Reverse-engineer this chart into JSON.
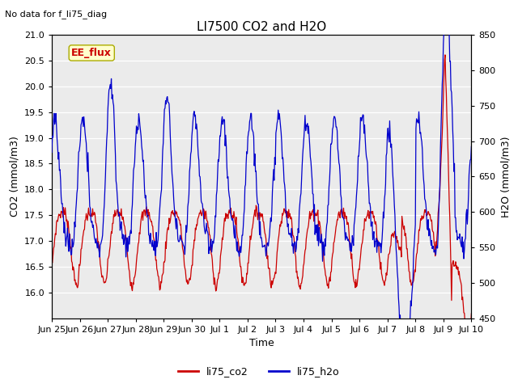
{
  "title": "LI7500 CO2 and H2O",
  "subtitle": "No data for f_li75_diag",
  "xlabel": "Time",
  "ylabel_left": "CO2 (mmol/m3)",
  "ylabel_right": "H2O (mmol/m3)",
  "ylim_left": [
    15.5,
    21.0
  ],
  "ylim_right": [
    450,
    850
  ],
  "yticks_left": [
    16.0,
    16.5,
    17.0,
    17.5,
    18.0,
    18.5,
    19.0,
    19.5,
    20.0,
    20.5,
    21.0
  ],
  "yticks_right": [
    450,
    500,
    550,
    600,
    650,
    700,
    750,
    800,
    850
  ],
  "xtick_labels": [
    "Jun 25",
    "Jun 26",
    "Jun 27",
    "Jun 28",
    "Jun 29",
    "Jun 30",
    "Jul 1",
    "Jul 2",
    "Jul 3",
    "Jul 4",
    "Jul 5",
    "Jul 6",
    "Jul 7",
    "Jul 8",
    "Jul 9",
    "Jul 10"
  ],
  "legend_labels": [
    "li75_co2",
    "li75_h2o"
  ],
  "legend_colors": [
    "#cc0000",
    "#0000cc"
  ],
  "co2_color": "#cc0000",
  "h2o_color": "#0000cc",
  "plot_bg_color": "#ebebeb",
  "grid_color": "#ffffff",
  "annotation_text": "EE_flux",
  "annotation_color": "#cc0000",
  "annotation_bg": "#ffffcc",
  "annotation_border": "#aaaa00"
}
